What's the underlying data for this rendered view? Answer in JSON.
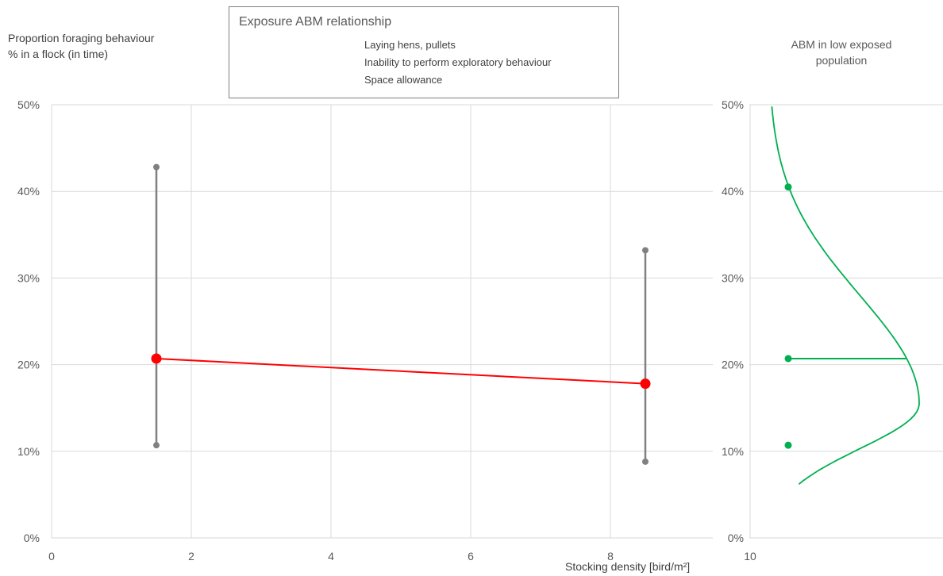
{
  "chart_data": {
    "type": "scatter",
    "title": "Exposure ABM relationship",
    "legend_lines": [
      "Laying hens, pullets",
      "Inability to perform exploratory behaviour",
      "Space allowance"
    ],
    "ylabel": [
      "Proportion foraging behaviour",
      "% in a flock (in time)"
    ],
    "xlabel": "Stocking density [bird/m²]",
    "xlim": [
      0,
      10
    ],
    "ylim": [
      0,
      50
    ],
    "x_ticks": [
      "0",
      "2",
      "4",
      "6",
      "8",
      "10"
    ],
    "y_ticks": [
      "0%",
      "10%",
      "20%",
      "30%",
      "40%",
      "50%"
    ],
    "grid": true,
    "series": [
      {
        "x": 1.5,
        "y": 20.7,
        "y_low": 10.7,
        "y_high": 42.8
      },
      {
        "x": 8.5,
        "y": 17.8,
        "y_low": 8.8,
        "y_high": 33.2
      }
    ],
    "distribution_panel": {
      "label": [
        "ABM in low exposed",
        "population"
      ],
      "y_ticks": [
        "0%",
        "10%",
        "20%",
        "30%",
        "40%",
        "50%"
      ],
      "points": [
        40.5,
        20.7,
        10.7
      ],
      "mean": 20.7
    },
    "colors": {
      "relationship": "#ff0000",
      "error_bars": "#808080",
      "distribution": "#00b050",
      "grid": "#d9d9d9"
    }
  }
}
